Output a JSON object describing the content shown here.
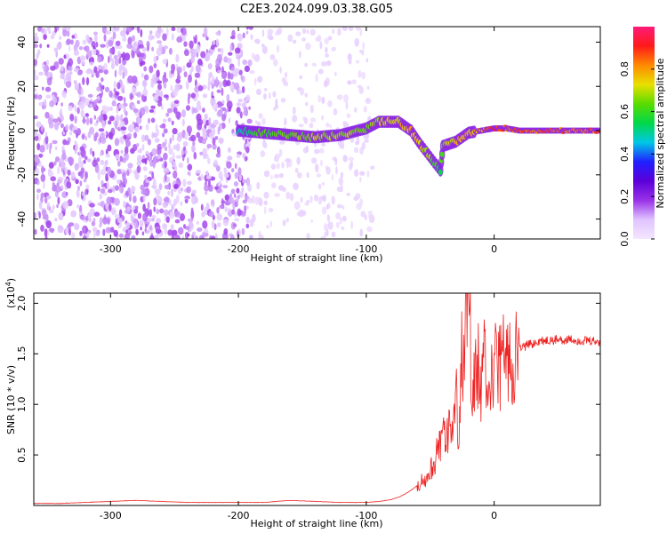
{
  "title": "C2E3.2024.099.03.38.G05",
  "chart_data": [
    {
      "type": "heatmap",
      "panel": "spectrogram",
      "xlabel": "Height of straight line (km)",
      "ylabel": "Frequency (Hz)",
      "xlim": [
        -360,
        83
      ],
      "ylim": [
        -49,
        47
      ],
      "x_ticks": [
        "-300",
        "-200",
        "-100",
        "0"
      ],
      "x_tick_values": [
        -300,
        -200,
        -100,
        0
      ],
      "y_ticks": [
        "-40",
        "-20",
        "0",
        "20",
        "40"
      ],
      "y_tick_values": [
        -40,
        -20,
        0,
        20,
        40
      ],
      "colorbar": {
        "label": "Normalized spectral amplitude",
        "range": [
          0,
          1
        ],
        "ticks": [
          "0.0",
          "0.2",
          "0.4",
          "0.6",
          "0.8"
        ],
        "tick_values": [
          0.0,
          0.2,
          0.4,
          0.6,
          0.8
        ],
        "colormap": [
          "#f4e6ff",
          "#e0c4ff",
          "#9932e8",
          "#5b00d8",
          "#2020ff",
          "#00c8e6",
          "#00d84a",
          "#5adc00",
          "#e8e000",
          "#ff8a00",
          "#ff1a1a",
          "#ff1a7a"
        ]
      },
      "signal_track": [
        {
          "x": -200,
          "freq": 0,
          "amp": 0.55
        },
        {
          "x": -180,
          "freq": -1,
          "amp": 0.65
        },
        {
          "x": -160,
          "freq": -2,
          "amp": 0.7
        },
        {
          "x": -140,
          "freq": -3,
          "amp": 0.72
        },
        {
          "x": -120,
          "freq": -2,
          "amp": 0.72
        },
        {
          "x": -100,
          "freq": 1,
          "amp": 0.7
        },
        {
          "x": -90,
          "freq": 4,
          "amp": 0.75
        },
        {
          "x": -75,
          "freq": 4,
          "amp": 0.8
        },
        {
          "x": -65,
          "freq": 0,
          "amp": 0.82
        },
        {
          "x": -58,
          "freq": -6,
          "amp": 0.78
        },
        {
          "x": -50,
          "freq": -12,
          "amp": 0.72
        },
        {
          "x": -42,
          "freq": -18,
          "amp": 0.6
        },
        {
          "x": -40,
          "freq": -7,
          "amp": 0.7
        },
        {
          "x": -30,
          "freq": -5,
          "amp": 0.8
        },
        {
          "x": -20,
          "freq": -1,
          "amp": 0.82
        },
        {
          "x": -10,
          "freq": 0,
          "amp": 0.85
        },
        {
          "x": 0,
          "freq": 1,
          "amp": 0.95
        },
        {
          "x": 10,
          "freq": 1,
          "amp": 0.9
        },
        {
          "x": 20,
          "freq": 0,
          "amp": 0.9
        },
        {
          "x": 40,
          "freq": 0,
          "amp": 0.9
        },
        {
          "x": 60,
          "freq": 0,
          "amp": 0.9
        },
        {
          "x": 83,
          "freq": 0,
          "amp": 0.9
        }
      ]
    },
    {
      "type": "line",
      "panel": "snr",
      "xlabel": "Height of straight line (km)",
      "ylabel": "SNR (10 * v/v)",
      "y_multiplier_label": "(x10",
      "y_multiplier_exp": "4",
      "y_multiplier_close": ")",
      "xlim": [
        -360,
        83
      ],
      "ylim": [
        0,
        2.1
      ],
      "x_ticks": [
        "-300",
        "-200",
        "-100",
        "0"
      ],
      "x_tick_values": [
        -300,
        -200,
        -100,
        0
      ],
      "y_ticks": [
        "0.5",
        "1.0",
        "1.5",
        "2.0"
      ],
      "y_tick_values": [
        0.5,
        1.0,
        1.5,
        2.0
      ],
      "color": "#ee2020",
      "series": [
        {
          "x": [
            -360,
            -340,
            -320,
            -300,
            -280,
            -260,
            -240,
            -220,
            -200,
            -180,
            -160,
            -140,
            -120,
            -100,
            -90,
            -80,
            -75,
            -70,
            -65,
            -60,
            -55,
            -50,
            -45,
            -42,
            -40,
            -38,
            -35,
            -32,
            -30,
            -28,
            -26,
            -24,
            -22,
            -20,
            -18,
            -16,
            -14,
            -12,
            -10,
            -8,
            -6,
            -4,
            -2,
            0,
            5,
            10,
            15,
            20,
            25,
            30,
            35,
            40,
            50,
            60,
            70,
            83
          ],
          "y": [
            0.02,
            0.02,
            0.03,
            0.04,
            0.05,
            0.04,
            0.03,
            0.03,
            0.03,
            0.03,
            0.05,
            0.04,
            0.03,
            0.03,
            0.04,
            0.06,
            0.08,
            0.11,
            0.15,
            0.2,
            0.25,
            0.35,
            0.5,
            0.6,
            0.8,
            0.55,
            0.95,
            0.6,
            1.2,
            0.7,
            1.35,
            1.6,
            1.9,
            2.05,
            1.4,
            1.2,
            1.3,
            1.45,
            1.0,
            1.5,
            1.35,
            1.2,
            1.3,
            1.35,
            1.4,
            1.45,
            1.5,
            1.55,
            1.58,
            1.6,
            1.62,
            1.63,
            1.64,
            1.64,
            1.63,
            1.62
          ]
        }
      ]
    }
  ]
}
